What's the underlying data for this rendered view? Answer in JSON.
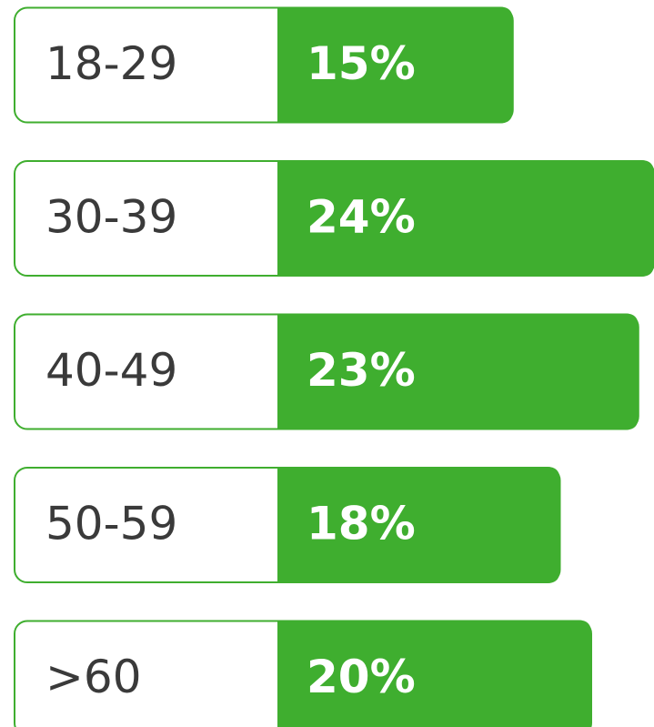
{
  "chart_data": {
    "type": "bar",
    "orientation": "horizontal",
    "categories": [
      "18-29",
      "30-39",
      "40-49",
      "50-59",
      ">60"
    ],
    "values": [
      15,
      24,
      23,
      18,
      20
    ],
    "value_labels": [
      "15%",
      "24%",
      "23%",
      "18%",
      "20%"
    ],
    "color": "#3fae2f"
  }
}
